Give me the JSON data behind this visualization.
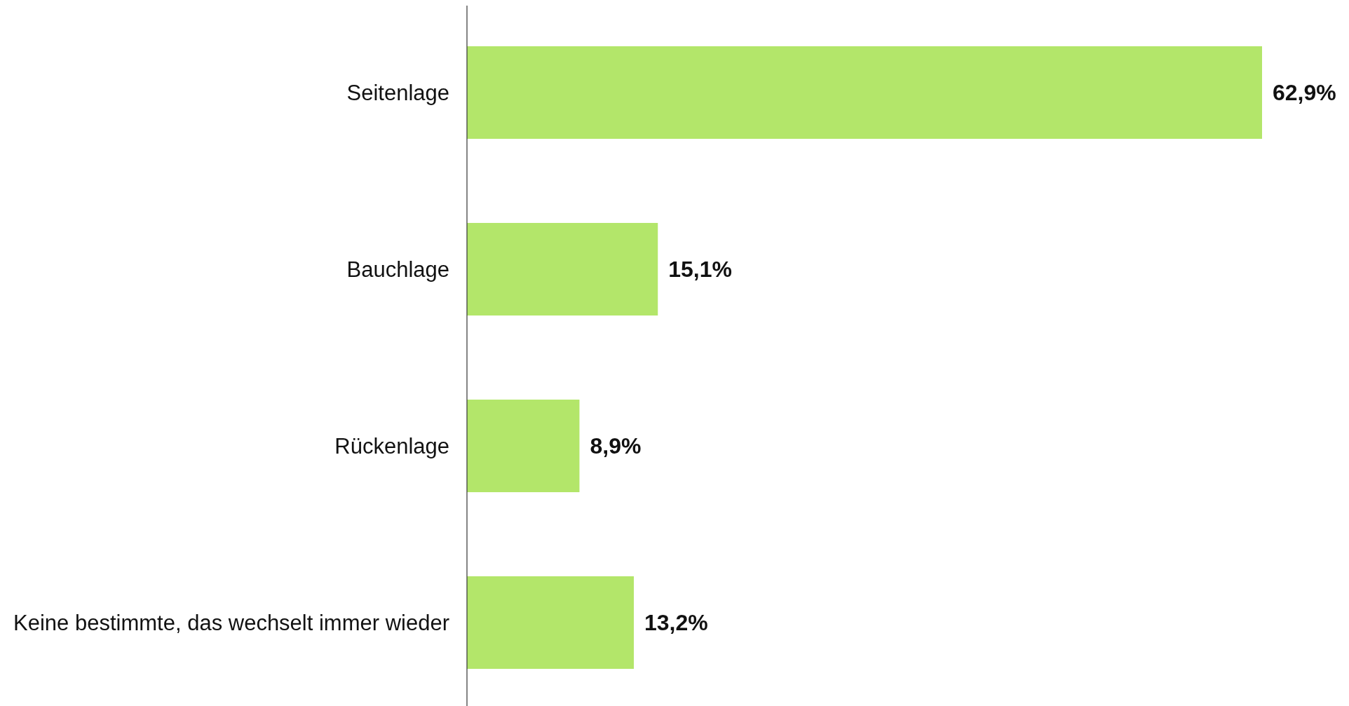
{
  "chart_data": {
    "type": "bar",
    "orientation": "horizontal",
    "categories": [
      "Seitenlage",
      "Bauchlage",
      "Rückenlage",
      "Keine bestimmte, das wechselt immer wieder"
    ],
    "values": [
      62.9,
      15.1,
      8.9,
      13.2
    ],
    "color": "#b3e66a",
    "value_labels": [
      "62,9%",
      "15,1%",
      "8,9%",
      "13,2%"
    ]
  }
}
